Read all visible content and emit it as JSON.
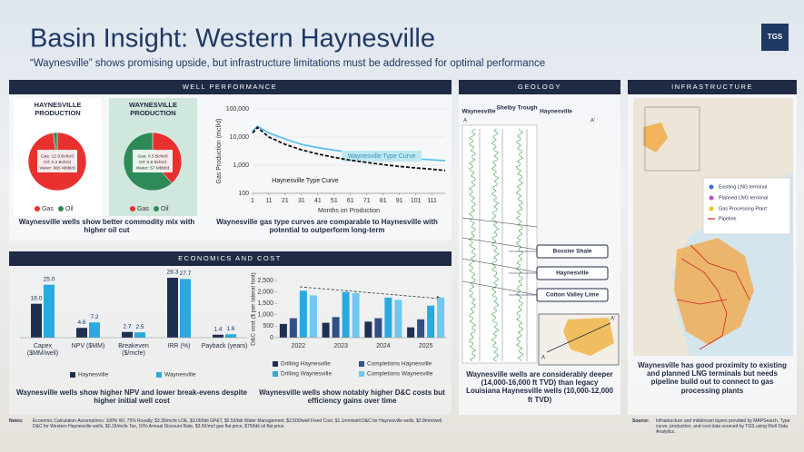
{
  "header": {
    "title": "Basin Insight: Western Haynesville",
    "subtitle": "“Waynesville” shows promising upside, but infrastructure limitations must be addressed for optimal performance",
    "logo": "TGS"
  },
  "sections": {
    "well_performance": "WELL PERFORMANCE",
    "economics": "ECONOMICS AND COST",
    "geology": "GEOLOGY",
    "infrastructure": "INFRASTRUCTURE"
  },
  "captions": {
    "commodity_mix": "Waynesville wells show better commodity mix with higher oil cut",
    "type_curve": "Waynesville gas type curves are comparable to Haynesville with potential to outperform long-term",
    "economics": "Waynesville wells show higher NPV and lower break-evens despite higher initial well cost",
    "dc_cost": "Waynesville wells show notably higher D&C costs but efficiency gains over time",
    "geology": "Waynesville wells are considerably deeper (14,000-16,000 ft TVD) than legacy Louisiana Haynesville wells (10,000-12,000 ft TVD)",
    "infrastructure": "Waynesville has good proximity to existing and planned LNG terminals but needs pipeline build out to connect to gas processing plants"
  },
  "chart_data": [
    {
      "type": "pie",
      "title": "HAYNESVILLE PRODUCTION",
      "categories": [
        "Gas",
        "Oil"
      ],
      "values": [
        12.9,
        0.3
      ],
      "colors": [
        "#e8312f",
        "#2e8b57"
      ],
      "annotations": [
        "Gas: 12.9 Bcfe/d",
        "Oil: 0.3 Bcfe/d",
        "Water: 965 Mbbl/d"
      ]
    },
    {
      "type": "pie",
      "title": "WAYNESVILLE PRODUCTION",
      "categories": [
        "Gas",
        "Oil"
      ],
      "values": [
        0.5,
        0.8
      ],
      "colors": [
        "#e8312f",
        "#2e8b57"
      ],
      "annotations": [
        "Gas: 0.5 Bcfe/d",
        "Oil: 0.8 Bcfe/d",
        "Water: 57 Mbbl/d"
      ]
    },
    {
      "type": "line",
      "xlabel": "Months on Production",
      "ylabel": "Gas Production (mcf/d)",
      "log_y": true,
      "grid": true,
      "x": [
        1,
        4,
        11,
        21,
        31,
        41,
        51,
        61,
        71,
        81,
        91,
        101,
        111,
        119
      ],
      "series": [
        {
          "name": "Waynesville Type Curve",
          "color": "#5bc0e8",
          "dashed": false,
          "values": [
            16000,
            24000,
            14000,
            8500,
            5500,
            4200,
            3400,
            2800,
            2400,
            2100,
            1900,
            1700,
            1550,
            1450
          ]
        },
        {
          "name": "Haynesville Type Curve",
          "color": "#111111",
          "dashed": true,
          "values": [
            14000,
            22000,
            10000,
            5500,
            3500,
            2500,
            1900,
            1500,
            1250,
            1050,
            900,
            800,
            720,
            650
          ]
        }
      ],
      "xlim": [
        1,
        119
      ],
      "ylim": [
        100,
        100000
      ],
      "xticks": [
        1,
        11,
        21,
        31,
        41,
        51,
        61,
        71,
        81,
        91,
        101,
        111
      ],
      "yticks": [
        100,
        {
          "value": 1000,
          "label": "1,000"
        },
        {
          "value": 10000,
          "label": "10,000"
        },
        {
          "value": 100000,
          "label": "100,000"
        }
      ]
    },
    {
      "type": "bar",
      "categories": [
        "Capex ($MM/well)",
        "NPV ($MM)",
        "Breakeven ($/mcfe)",
        "IRR (%)",
        "Payback (years)"
      ],
      "series": [
        {
          "name": "Haynesville",
          "color": "#1f2f52",
          "values": [
            16.0,
            4.6,
            2.7,
            28.3,
            1.4
          ],
          "value_labels": [
            "16.0",
            "4.6",
            "2.7",
            "28.3",
            "1.4"
          ]
        },
        {
          "name": "Waynesville",
          "color": "#2aa9e0",
          "values": [
            25.0,
            7.2,
            2.5,
            27.7,
            1.6
          ],
          "value_labels": [
            "25.0",
            "7.2",
            "2.5",
            "27.7",
            "1.6"
          ]
        }
      ]
    },
    {
      "type": "bar",
      "ylabel": "D&C cost ($ per lateral foot)",
      "categories": [
        "2022",
        "2023",
        "2024",
        "2025"
      ],
      "series": [
        {
          "name": "Drilling Haynesville",
          "color": "#1f2f52",
          "values": [
            600,
            650,
            700,
            450
          ]
        },
        {
          "name": "Completions Haynesville",
          "color": "#344f86",
          "values": [
            850,
            900,
            850,
            800
          ]
        },
        {
          "name": "Drilling Waynesville",
          "color": "#2aa9e0",
          "values": [
            2050,
            2000,
            1750,
            1400
          ]
        },
        {
          "name": "Completions Waynesville",
          "color": "#6fc8ee",
          "values": [
            1850,
            1950,
            1650,
            1750
          ]
        }
      ],
      "ylim": [
        0,
        2500
      ],
      "yticks": [
        0,
        500,
        {
          "value": 1000,
          "label": "1,000"
        },
        {
          "value": 1500,
          "label": "1,500"
        },
        {
          "value": 2000,
          "label": "2,000"
        },
        {
          "value": 2500,
          "label": "2,500"
        }
      ]
    }
  ],
  "geology": {
    "wells": [
      "Waynesville",
      "Shelby Trough",
      "Haynesville"
    ],
    "section_ends": [
      "A",
      "A'"
    ],
    "layers": [
      "Bossier Shale",
      "Haynesville",
      "Cotton Valley Lime"
    ]
  },
  "infrastructure": {
    "legend": [
      "Existing LNG terminal",
      "Planned LNG terminal",
      "Gas Processing Plant",
      "Pipeline"
    ]
  },
  "notes": {
    "label": "Notes:",
    "text": "Economic Calculation Assumptions: 100% WI, 75% Royalty, $3.35/mcfe LOE, $3.00/bbl GP&T, $0.50/bbl Water Management, $2,500/well Fixed Cost, $1.1mm/well D&C for Haynesville wells, $2.8mm/well D&C for Western Haynesville wells, $0.15/mcfe Tax, 10% Annual Discount Rate, $3.50/mcf gas flat price, $75/bbl oil flat price."
  },
  "source": {
    "label": "Source:",
    "text": "Infrastructure and midstream layers provided by MAPSearch. Type curve, production, and cost data sourced by TGS using Well Data Analytics."
  }
}
